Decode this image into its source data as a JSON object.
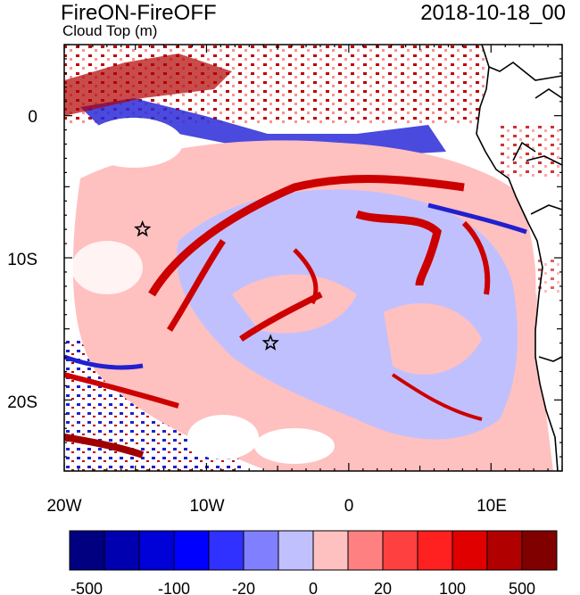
{
  "header": {
    "title": "FireON-FireOFF",
    "subtitle": "Cloud Top (m)",
    "datetime": "2018-10-18_00"
  },
  "map": {
    "lon_ticks": [
      "20W",
      "10W",
      "0",
      "10E"
    ],
    "lat_ticks": [
      "0",
      "10S",
      "20S"
    ],
    "markers": [
      {
        "name": "star-marker-west",
        "lon": -14.5,
        "lat": -8.0
      },
      {
        "name": "star-marker-central",
        "lon": -5.5,
        "lat": -16.0
      }
    ]
  },
  "colorbar": {
    "colors": [
      "#000080",
      "#0000b0",
      "#0000d8",
      "#0000ff",
      "#3030ff",
      "#8080ff",
      "#c0c0ff",
      "#ffc0c0",
      "#ff8080",
      "#ff4040",
      "#ff2020",
      "#e00000",
      "#b00000",
      "#800000"
    ],
    "labels": [
      "-500",
      "-100",
      "-20",
      "0",
      "20",
      "100",
      "500"
    ]
  }
}
